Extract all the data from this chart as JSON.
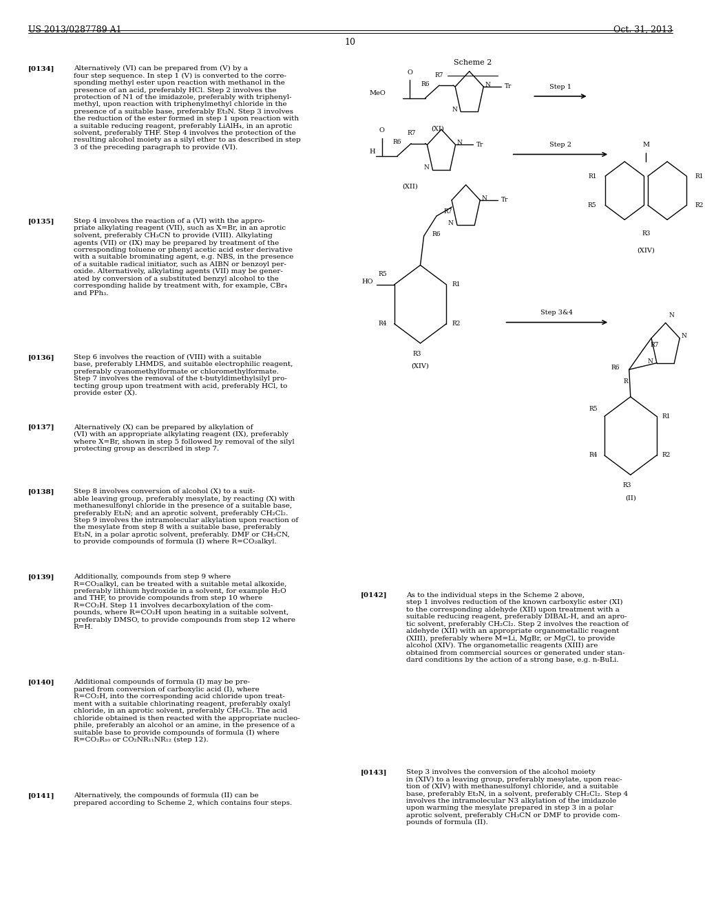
{
  "page_width": 10.24,
  "page_height": 13.2,
  "bg_color": "#ffffff",
  "header_left": "US 2013/0287789 A1",
  "header_right": "Oct. 31, 2013",
  "page_number": "10",
  "scheme_label": "Scheme 2",
  "paragraphs_left": [
    [
      0.928,
      "[0134]",
      "Alternatively (VI) can be prepared from (V) by a\nfour step sequence. In step 1 (V) is converted to the corre-\nsponding methyl ester upon reaction with methanol in the\npresence of an acid, preferably HCl. Step 2 involves the\nprotection of N1 of the imidazole, preferably with triphenyl-\nmethyl, upon reaction with triphenylmethyl chloride in the\npresence of a suitable base, preferably Et₃N. Step 3 involves\nthe reduction of the ester formed in step 1 upon reaction with\na suitable reducing reagent, preferably LiAlH₄, in an aprotic\nsolvent, preferably THF. Step 4 involves the protection of the\nresulting alcohol moiety as a silyl ether to as described in step\n3 of the preceding paragraph to provide (VI)."
    ],
    [
      0.76,
      "[0135]",
      "Step 4 involves the reaction of a (VI) with the appro-\npriate alkylating reagent (VII), such as X=Br, in an aprotic\nsolvent, preferably CH₃CN to provide (VIII). Alkylating\nagents (VII) or (IX) may be prepared by treatment of the\ncorresponding toluene or phenyl acetic acid ester derivative\nwith a suitable brominating agent, e.g. NBS, in the presence\nof a suitable radical initiator, such as AIBN or benzoyl per-\noxide. Alternatively, alkylating agents (VII) may be gener-\nated by conversion of a substituted benzyl alcohol to the\ncorresponding halide by treatment with, for example, CBr₄\nand PPh₃."
    ],
    [
      0.61,
      "[0136]",
      "Step 6 involves the reaction of (VIII) with a suitable\nbase, preferably LHMDS, and suitable electrophilic reagent,\npreferably cyanomethylformate or chloromethylformate.\nStep 7 involves the removal of the t-butyldimethylsilyl pro-\ntecting group upon treatment with acid, preferably HCl, to\nprovide ester (X)."
    ],
    [
      0.533,
      "[0137]",
      "Alternatively (X) can be prepared by alkylation of\n(VI) with an appropriate alkylating reagent (IX), preferably\nwhere X=Br, shown in step 5 followed by removal of the silyl\nprotecting group as described in step 7."
    ],
    [
      0.462,
      "[0138]",
      "Step 8 involves conversion of alcohol (X) to a suit-\nable leaving group, preferably mesylate, by reacting (X) with\nmethanesulfonyl chloride in the presence of a suitable base,\npreferably Et₃N; and an aprotic solvent, preferably CH₂Cl₂.\nStep 9 involves the intramolecular alkylation upon reaction of\nthe mesylate from step 8 with a suitable base, preferably\nEt₃N, in a polar aprotic solvent, preferably. DMF or CH₃CN,\nto provide compounds of formula (I) where R=CO₂alkyl."
    ],
    [
      0.368,
      "[0139]",
      "Additionally, compounds from step 9 where\nR=CO₂alkyl, can be treated with a suitable metal alkoxide,\npreferably lithium hydroxide in a solvent, for example H₂O\nand THF, to provide compounds from step 10 where\nR=CO₂H. Step 11 involves decarboxylation of the com-\npounds, where R=CO₂H upon heating in a suitable solvent,\npreferably DMSO, to provide compounds from step 12 where\nR=H."
    ],
    [
      0.252,
      "[0140]",
      "Additional compounds of formula (I) may be pre-\npared from conversion of carboxylic acid (I), where\nR=CO₂H, into the corresponding acid chloride upon treat-\nment with a suitable chlorinating reagent, preferably oxalyl\nchloride, in an aprotic solvent, preferably CH₂Cl₂. The acid\nchloride obtained is then reacted with the appropriate nucleo-\nphile, preferably an alcohol or an amine, in the presence of a\nsuitable base to provide compounds of formula (I) where\nR=CO₂R₁₀ or CO₂NR₁₁NR₁₂ (step 12)."
    ],
    [
      0.127,
      "[0141]",
      "Alternatively, the compounds of formula (II) can be\nprepared according to Scheme 2, which contains four steps."
    ]
  ],
  "paragraphs_right": [
    [
      0.348,
      "[0142]",
      "As to the individual steps in the Scheme 2 above,\nstep 1 involves reduction of the known carboxylic ester (XI)\nto the corresponding aldehyde (XII) upon treatment with a\nsuitable reducing reagent, preferably DIBAL-H, and an apro-\ntic solvent, preferably CH₂Cl₂. Step 2 involves the reaction of\naldehyde (XII) with an appropriate organometallic reagent\n(XIII), preferably where M=Li, MgBr, or MgCl, to provide\nalcohol (XIV). The organometallic reagents (XIII) are\nobtained from commercial sources or generated under stan-\ndard conditions by the action of a strong base, e.g. n-BuLi."
    ],
    [
      0.153,
      "[0143]",
      "Step 3 involves the conversion of the alcohol moiety\nin (XIV) to a leaving group, preferably mesylate, upon reac-\ntion of (XIV) with methanesulfonyl chloride, and a suitable\nbase, preferably Et₃N, in a solvent, preferably CH₂Cl₂. Step 4\ninvolves the intramolecular N3 alkylation of the imidazole\nupon warming the mesylate prepared in step 3 in a polar\naprotic solvent, preferably CH₃CN or DMF to provide com-\npounds of formula (II)."
    ]
  ]
}
